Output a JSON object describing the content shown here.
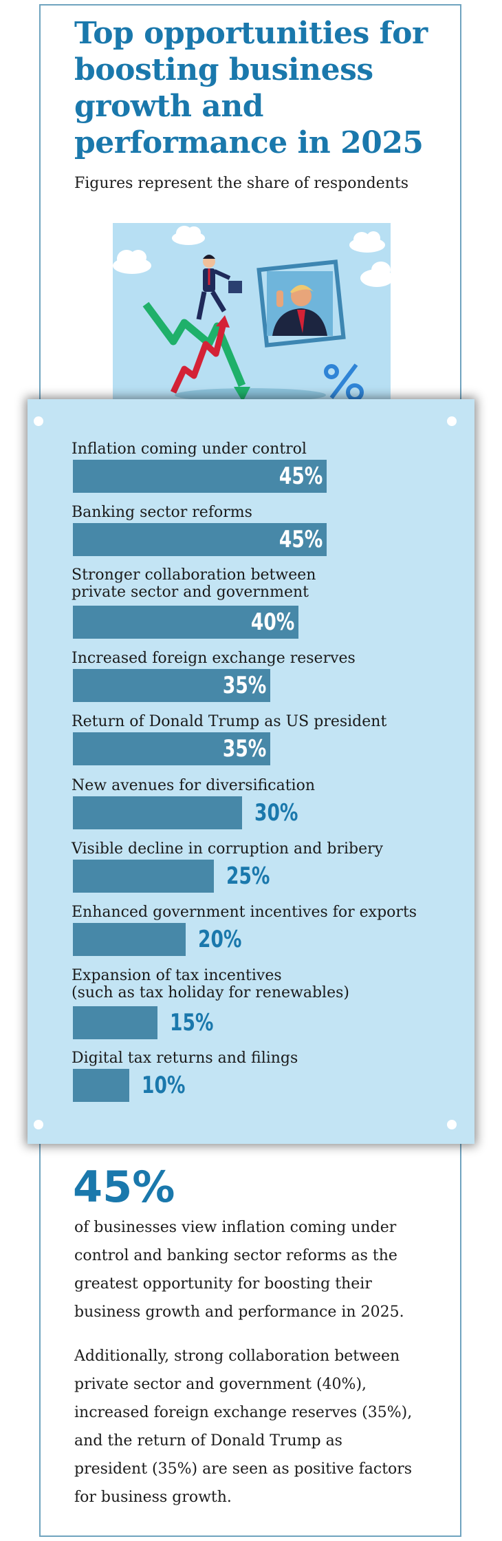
{
  "header": {
    "title": "Top opportunities for boosting business growth and performance in 2025",
    "subtitle": "Figures represent the share of respondents"
  },
  "chart_data": {
    "type": "bar",
    "orientation": "horizontal",
    "title": "Top opportunities for boosting business growth and performance in 2025",
    "unit": "%",
    "categories": [
      "Inflation coming under control",
      "Banking sector reforms",
      "Stronger collaboration between\nprivate sector and government",
      "Increased foreign exchange reserves",
      "Return of Donald Trump as US president",
      "New avenues for diversification",
      "Visible decline in corruption and bribery",
      "Enhanced government incentives for exports",
      "Expansion of tax incentives\n(such as tax holiday for renewables)",
      "Digital tax returns and filings"
    ],
    "values": [
      45,
      45,
      40,
      35,
      35,
      30,
      25,
      20,
      15,
      10
    ],
    "value_labels": [
      "45%",
      "45%",
      "40%",
      "35%",
      "35%",
      "30%",
      "25%",
      "20%",
      "15%",
      "10%"
    ],
    "xlim": [
      0,
      100
    ],
    "colors": {
      "bar": "#4788a8",
      "label_inside": "#ffffff",
      "label_outside": "#1a78ac",
      "panel": "#c3e4f4"
    }
  },
  "summary": {
    "big_stat": "45%",
    "paragraph1": "of businesses view inflation coming under control and banking sector reforms as the greatest opportunity for boosting their business growth and performance in 2025.",
    "paragraph2": "Additionally, strong collaboration between private sector and government (40%), increased foreign exchange reserves (35%), and the return of Donald Trump as president (35%) are seen as positive factors for business growth."
  },
  "colors": {
    "accent": "#1a78ac",
    "frame": "#6fa3bf"
  }
}
